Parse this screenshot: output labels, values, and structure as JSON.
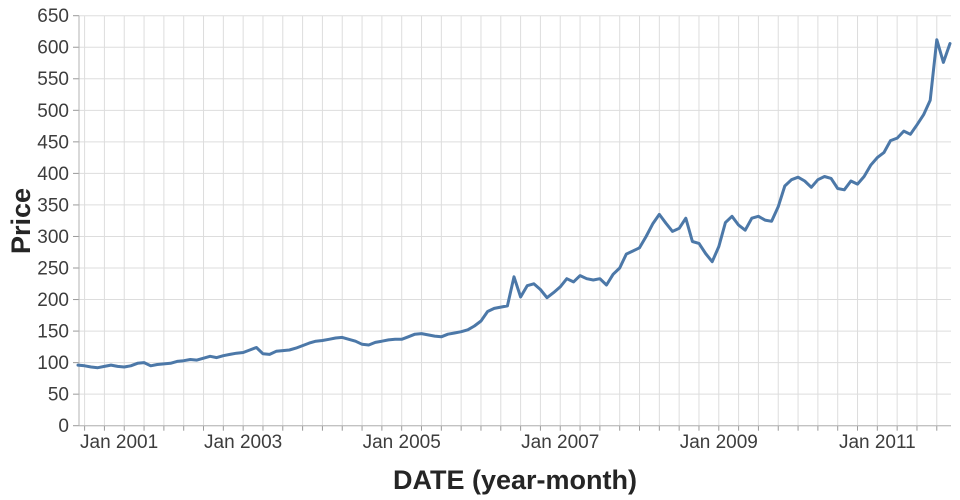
{
  "style": {
    "line_color": "#4c78a8",
    "grid_color": "#dddddd",
    "axis_color": "#b3b3b3",
    "tick_color": "#9a9a9a",
    "label_color": "#3d3d3d",
    "title_color": "#252525",
    "background": "#ffffff"
  },
  "chart_data": {
    "type": "line",
    "title": "",
    "xlabel": "DATE (year-month)",
    "ylabel": "Price",
    "ylim": [
      0,
      650
    ],
    "y_ticks": [
      0,
      50,
      100,
      150,
      200,
      250,
      300,
      350,
      400,
      450,
      500,
      550,
      600,
      650
    ],
    "x_tick_labels": [
      "Jan 2001",
      "Jan 2003",
      "Jan 2005",
      "Jan 2007",
      "Jan 2009",
      "Jan 2011"
    ],
    "x_tick_month_index": [
      1,
      25,
      49,
      73,
      97,
      121
    ],
    "grid": {
      "horizontal": "every 50 units",
      "vertical": "every 3 months"
    },
    "legend": "none",
    "x_range": [
      "2000-12",
      "2011-12"
    ],
    "series": [
      {
        "name": "Price",
        "color": "#4c78a8",
        "months": [
          "2000-12",
          "2001-01",
          "2001-02",
          "2001-03",
          "2001-04",
          "2001-05",
          "2001-06",
          "2001-07",
          "2001-08",
          "2001-09",
          "2001-10",
          "2001-11",
          "2001-12",
          "2002-01",
          "2002-02",
          "2002-03",
          "2002-04",
          "2002-05",
          "2002-06",
          "2002-07",
          "2002-08",
          "2002-09",
          "2002-10",
          "2002-11",
          "2002-12",
          "2003-01",
          "2003-02",
          "2003-03",
          "2003-04",
          "2003-05",
          "2003-06",
          "2003-07",
          "2003-08",
          "2003-09",
          "2003-10",
          "2003-11",
          "2003-12",
          "2004-01",
          "2004-02",
          "2004-03",
          "2004-04",
          "2004-05",
          "2004-06",
          "2004-07",
          "2004-08",
          "2004-09",
          "2004-10",
          "2004-11",
          "2004-12",
          "2005-01",
          "2005-02",
          "2005-03",
          "2005-04",
          "2005-05",
          "2005-06",
          "2005-07",
          "2005-08",
          "2005-09",
          "2005-10",
          "2005-11",
          "2005-12",
          "2006-01",
          "2006-02",
          "2006-03",
          "2006-04",
          "2006-05",
          "2006-06",
          "2006-07",
          "2006-08",
          "2006-09",
          "2006-10",
          "2006-11",
          "2006-12",
          "2007-01",
          "2007-02",
          "2007-03",
          "2007-04",
          "2007-05",
          "2007-06",
          "2007-07",
          "2007-08",
          "2007-09",
          "2007-10",
          "2007-11",
          "2007-12",
          "2008-01",
          "2008-02",
          "2008-03",
          "2008-04",
          "2008-05",
          "2008-06",
          "2008-07",
          "2008-08",
          "2008-09",
          "2008-10",
          "2008-11",
          "2008-12",
          "2009-01",
          "2009-02",
          "2009-03",
          "2009-04",
          "2009-05",
          "2009-06",
          "2009-07",
          "2009-08",
          "2009-09",
          "2009-10",
          "2009-11",
          "2009-12",
          "2010-01",
          "2010-02",
          "2010-03",
          "2010-04",
          "2010-05",
          "2010-06",
          "2010-07",
          "2010-08",
          "2010-09",
          "2010-10",
          "2010-11",
          "2010-12",
          "2011-01",
          "2011-02",
          "2011-03",
          "2011-04",
          "2011-05",
          "2011-06",
          "2011-07",
          "2011-08",
          "2011-09",
          "2011-10",
          "2011-11",
          "2011-12"
        ],
        "values": [
          96,
          95,
          93,
          92,
          94,
          96,
          94,
          93,
          95,
          99,
          100,
          95,
          97,
          98,
          99,
          102,
          103,
          105,
          104,
          107,
          110,
          108,
          111,
          113,
          115,
          116,
          120,
          124,
          114,
          113,
          118,
          119,
          120,
          123,
          127,
          131,
          134,
          135,
          137,
          139,
          140,
          137,
          134,
          129,
          128,
          132,
          134,
          136,
          137,
          137,
          141,
          145,
          146,
          144,
          142,
          141,
          145,
          147,
          149,
          152,
          158,
          166,
          181,
          186,
          188,
          190,
          236,
          204,
          222,
          225,
          216,
          203,
          211,
          220,
          233,
          228,
          238,
          233,
          231,
          233,
          223,
          240,
          250,
          272,
          277,
          282,
          300,
          320,
          335,
          321,
          308,
          313,
          329,
          292,
          289,
          273,
          260,
          284,
          322,
          332,
          318,
          310,
          329,
          332,
          326,
          324,
          347,
          380,
          390,
          394,
          388,
          378,
          390,
          395,
          392,
          376,
          374,
          388,
          383,
          395,
          413,
          425,
          433,
          452,
          456,
          467,
          462,
          477,
          493,
          516,
          612,
          576,
          606
        ]
      }
    ]
  },
  "layout_note": "plot area left 79, right 951, top 16, bottom 426"
}
